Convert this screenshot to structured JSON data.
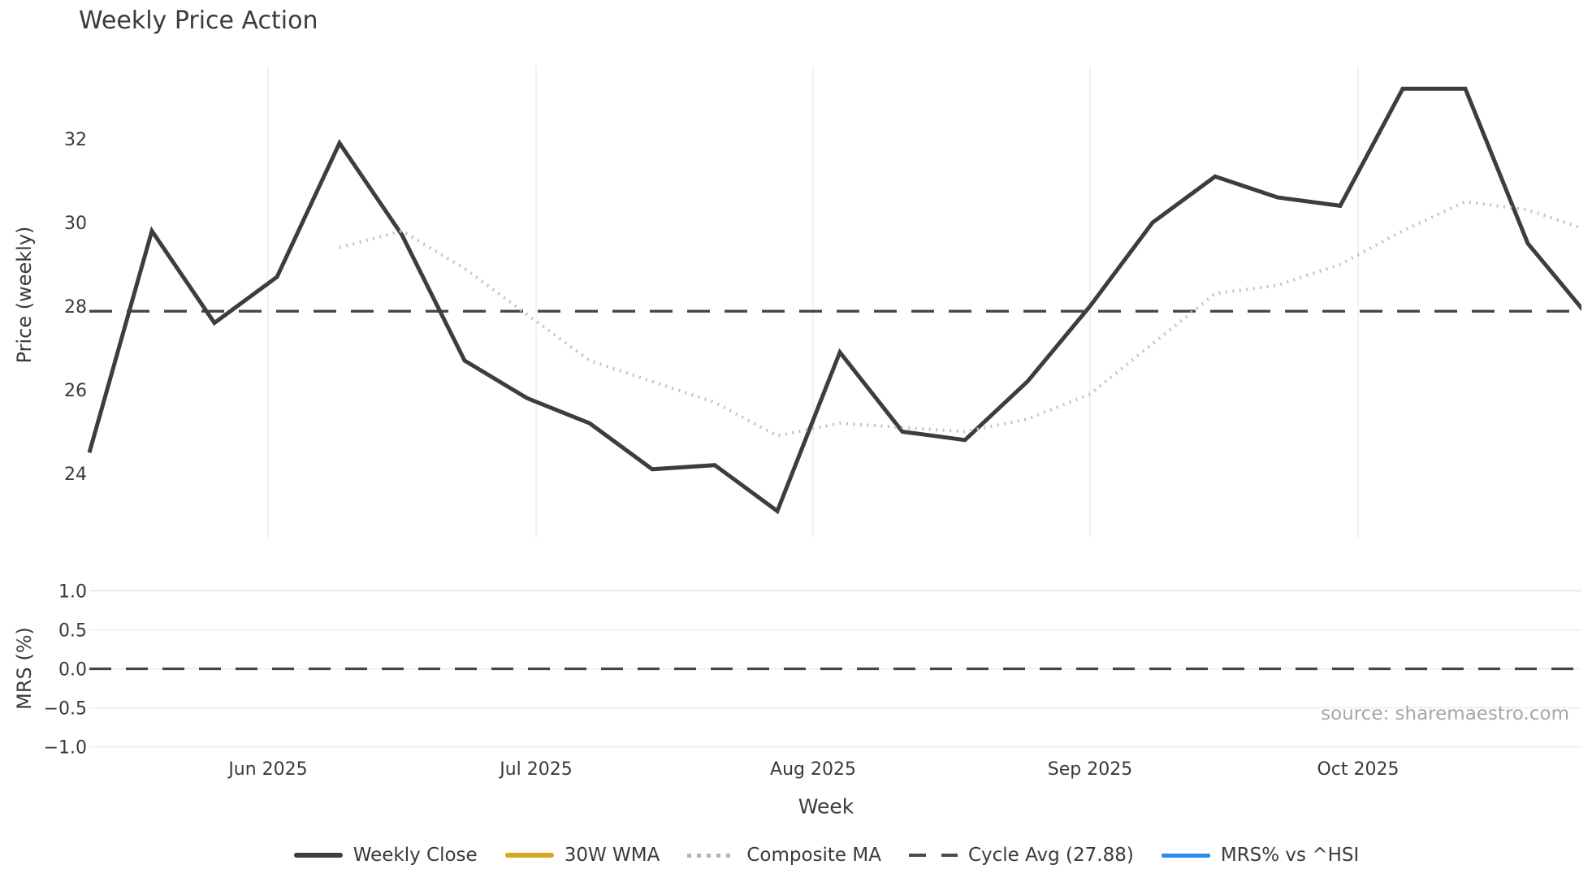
{
  "header": {
    "title": "Weekly Price Action"
  },
  "source_note": "source: sharemaestro.com",
  "legend": {
    "items": [
      {
        "label": "Weekly Close",
        "swatch": "solid-dark-line-icon",
        "color": "#3d3d3d"
      },
      {
        "label": "30W WMA",
        "swatch": "solid-gold-line-icon",
        "color": "#d9a621"
      },
      {
        "label": "Composite MA",
        "swatch": "dotted-gray-line-icon",
        "color": "#b5b5b5"
      },
      {
        "label": "Cycle Avg (27.88)",
        "swatch": "dashed-dark-line-icon",
        "color": "#4a4a4a"
      },
      {
        "label": "MRS% vs ^HSI",
        "swatch": "solid-blue-line-icon",
        "color": "#2a8ceb"
      }
    ]
  },
  "chart_data": [
    {
      "type": "line",
      "subplot": "price",
      "title": "Weekly Price Action",
      "ylabel": "Price (weekly)",
      "ylim": [
        22.45,
        33.75
      ],
      "y_ticks": [
        24,
        26,
        28,
        30,
        32
      ],
      "x_ticks": [
        {
          "day": 20,
          "label": "Jun 2025"
        },
        {
          "day": 50,
          "label": "Jul 2025"
        },
        {
          "day": 81,
          "label": "Aug 2025"
        },
        {
          "day": 112,
          "label": "Sep 2025"
        },
        {
          "day": 142,
          "label": "Oct 2025"
        }
      ],
      "xlim_days": [
        -2,
        167
      ],
      "grid": "vertical-month-gridlines",
      "legend_position": "below-figure-centered",
      "series": [
        {
          "name": "Weekly Close",
          "line_style": "solid",
          "color": "#3d3d3d",
          "width": 5,
          "x_days": [
            0,
            7,
            14,
            21,
            28,
            35,
            42,
            49,
            56,
            63,
            70,
            77,
            84,
            91,
            98,
            105,
            112,
            119,
            126,
            133,
            140,
            147,
            154,
            161,
            168
          ],
          "values": [
            24.5,
            29.8,
            27.6,
            28.7,
            31.9,
            29.7,
            26.7,
            25.8,
            25.2,
            24.1,
            24.2,
            23.1,
            26.9,
            25.0,
            24.8,
            26.2,
            28.0,
            30.0,
            31.1,
            30.6,
            30.4,
            33.2,
            33.2,
            29.5,
            27.7
          ]
        },
        {
          "name": "30W WMA",
          "line_style": "solid",
          "color": "#d9a621",
          "width": 4,
          "x_days": [],
          "values": []
        },
        {
          "name": "Composite MA",
          "line_style": "dotted",
          "color": "#c2c2c2",
          "width": 4,
          "x_days": [
            28,
            35,
            42,
            49,
            56,
            63,
            70,
            77,
            84,
            91,
            98,
            105,
            112,
            119,
            126,
            133,
            140,
            147,
            154,
            161,
            168
          ],
          "values": [
            29.4,
            29.8,
            28.9,
            27.8,
            26.7,
            26.2,
            25.7,
            24.9,
            25.2,
            25.1,
            25.0,
            25.3,
            25.9,
            27.1,
            28.3,
            28.5,
            29.0,
            29.8,
            30.5,
            30.3,
            29.8
          ]
        }
      ],
      "reference_line": {
        "name": "Cycle Avg (27.88)",
        "value": 27.88,
        "line_style": "dashed",
        "color": "#454545"
      }
    },
    {
      "type": "line",
      "subplot": "mrs",
      "ylabel": "MRS (%)",
      "xlabel": "Week",
      "ylim": [
        -1.12,
        1.12
      ],
      "y_ticks": [
        -1.0,
        -0.5,
        0.0,
        0.5,
        1.0
      ],
      "grid": "horizontal-gridlines",
      "series": [
        {
          "name": "MRS% vs ^HSI",
          "line_style": "solid",
          "color": "#2a8ceb",
          "width": 4,
          "x_days": [],
          "values": []
        }
      ],
      "reference_line": {
        "name": "zero-line",
        "value": 0.0,
        "line_style": "dashed",
        "color": "#454545"
      }
    }
  ]
}
